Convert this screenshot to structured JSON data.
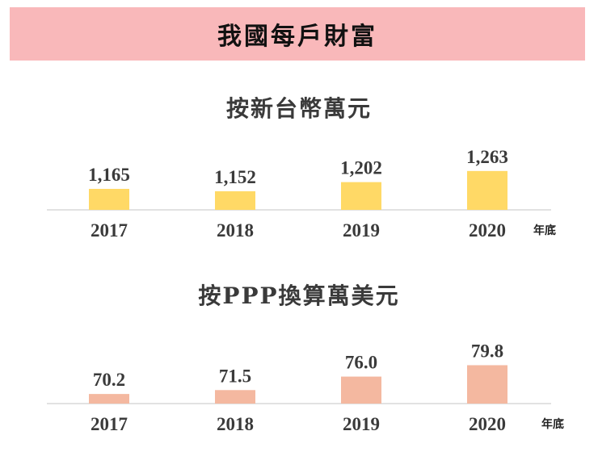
{
  "banner": {
    "title": "我國每戶財富"
  },
  "chart_data": [
    {
      "type": "bar",
      "title": "按新台幣萬元",
      "categories": [
        "2017",
        "2018",
        "2019",
        "2020"
      ],
      "values": [
        1165,
        1152,
        1202,
        1263
      ],
      "value_labels": [
        "1,165",
        "1,152",
        "1,202",
        "1,263"
      ],
      "unit_label": "年底",
      "color": "#ffd966",
      "ylim": [
        1050,
        1280
      ],
      "grid": false,
      "legend": "none"
    },
    {
      "type": "bar",
      "title": "按PPP換算萬美元",
      "categories": [
        "2017",
        "2018",
        "2019",
        "2020"
      ],
      "values": [
        70.2,
        71.5,
        76.0,
        79.8
      ],
      "value_labels": [
        "70.2",
        "71.5",
        "76.0",
        "79.8"
      ],
      "unit_label": "年底",
      "color": "#f4b8a0",
      "ylim": [
        67,
        81
      ],
      "grid": false,
      "legend": "none"
    }
  ],
  "colors": {
    "banner_bg": "#f9b8ba",
    "baseline": "#d9d9d9"
  }
}
